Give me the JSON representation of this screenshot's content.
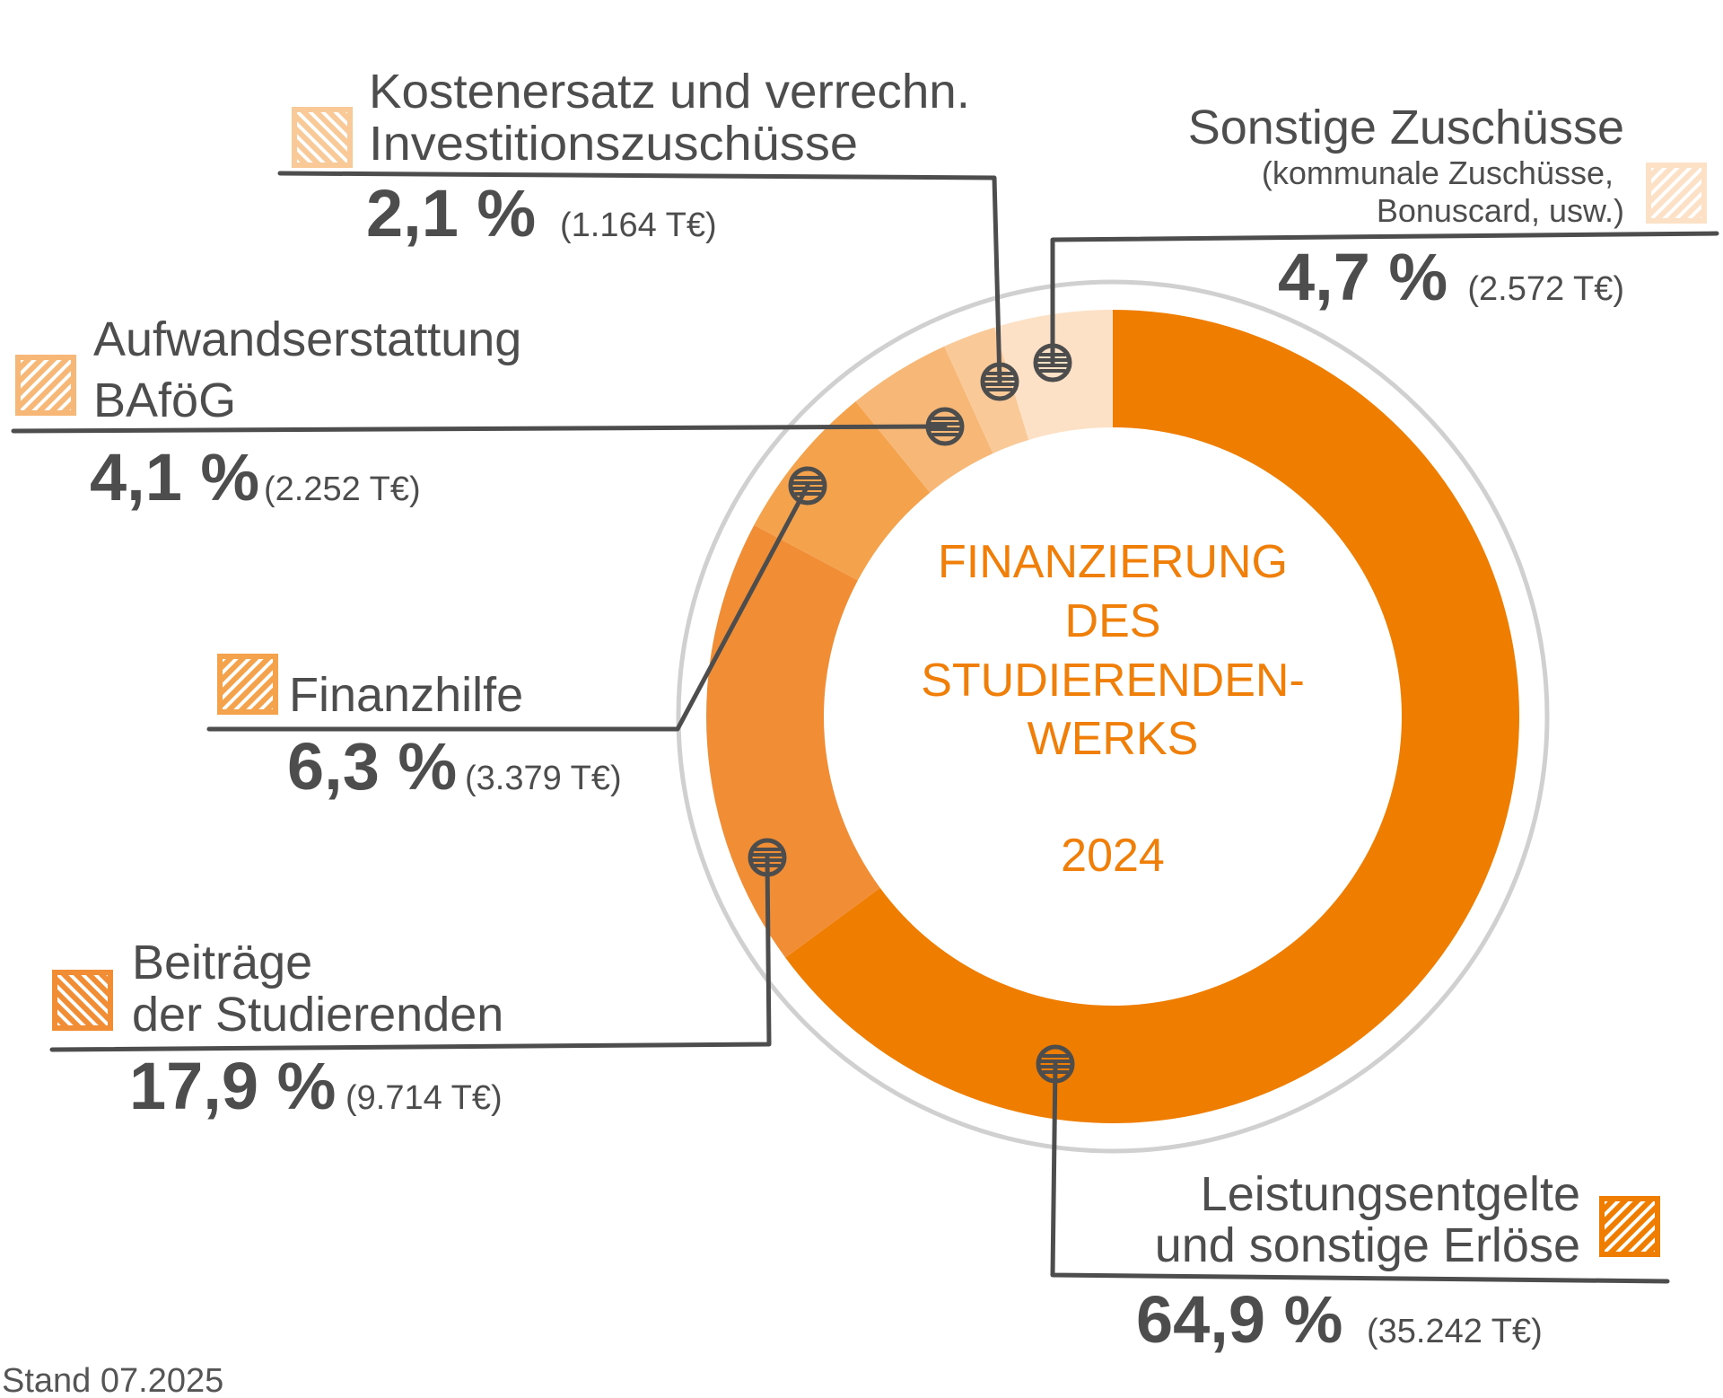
{
  "chart_data": {
    "type": "pie",
    "variant": "donut",
    "title": [
      "FINANZIERUNG",
      "DES",
      "STUDIERENDEN-",
      "WERKS"
    ],
    "year": "2024",
    "unit_percent": "%",
    "slices": [
      {
        "label": [
          "Leistungsentgelte",
          "und sonstige Erlöse"
        ],
        "percent": 64.9,
        "percent_text": "64,9 %",
        "amount_text": "(35.242 T€)",
        "color": "#ef7d00"
      },
      {
        "label": [
          "Beiträge",
          "der Studierenden"
        ],
        "percent": 17.9,
        "percent_text": "17,9 %",
        "amount_text": "(9.714 T€)",
        "color": "#f08d35"
      },
      {
        "label": [
          "Finanzhilfe"
        ],
        "percent": 6.3,
        "percent_text": "6,3 %",
        "amount_text": "(3.379 T€)",
        "color": "#f4a24c"
      },
      {
        "label": [
          "Aufwandserstattung",
          "BAföG"
        ],
        "percent": 4.1,
        "percent_text": "4,1 %",
        "amount_text": "(2.252 T€)",
        "color": "#f7b877"
      },
      {
        "label": [
          "Kostenersatz und verrechn.",
          "Investitionszuschüsse"
        ],
        "percent": 2.1,
        "percent_text": "2,1 %",
        "amount_text": "(1.164 T€)",
        "color": "#fac998"
      },
      {
        "label": [
          "Sonstige Zuschüsse"
        ],
        "sublabel": [
          "(kommunale Zuschüsse,",
          "Bonuscard, usw.)"
        ],
        "percent": 4.7,
        "percent_text": "4,7 %",
        "amount_text": "(2.572 T€)",
        "color": "#fde1c6"
      }
    ],
    "legend_placement": "around"
  },
  "footer": {
    "stand": "Stand 07.2025"
  },
  "colors": {
    "text": "#4d4d4d",
    "ring": "#d0d0d0",
    "center_text": "#f07f0a"
  }
}
